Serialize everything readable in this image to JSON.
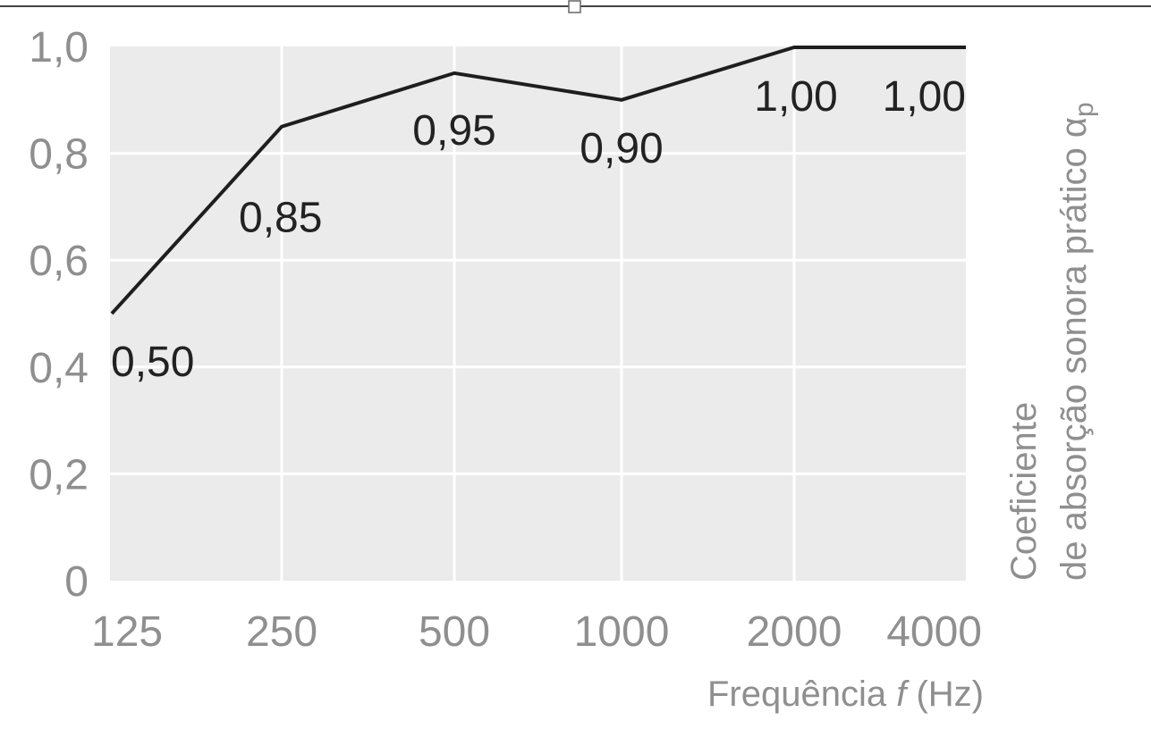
{
  "chart_data": {
    "type": "line",
    "x": [
      "125",
      "250",
      "500",
      "1000",
      "2000",
      "4000"
    ],
    "series": [
      {
        "values": [
          0.5,
          0.85,
          0.95,
          0.9,
          1.0,
          1.0
        ]
      }
    ],
    "data_labels": [
      "0,50",
      "0,85",
      "0,95",
      "0,90",
      "1,00",
      "1,00"
    ],
    "y_ticks": [
      0,
      0.2,
      0.4,
      0.6,
      0.8,
      1.0
    ],
    "y_tick_labels": [
      "0",
      "0,2",
      "0,4",
      "0,6",
      "0,8",
      "1,0"
    ],
    "ylim": [
      0,
      1.0
    ],
    "grid": true,
    "xlabel_prefix": "Frequência ",
    "xlabel_var": "f",
    "xlabel_suffix": " (Hz)",
    "ylabel_line1": "Coeficiente",
    "ylabel_line2": "de absorção sonora prático α",
    "ylabel_subscript": "p",
    "colors": {
      "plot_background": "#ebebeb",
      "gridline": "#ffffff",
      "line": "#1e1e1e",
      "tick_text": "#8f8f8f",
      "label_text": "#222222"
    }
  }
}
